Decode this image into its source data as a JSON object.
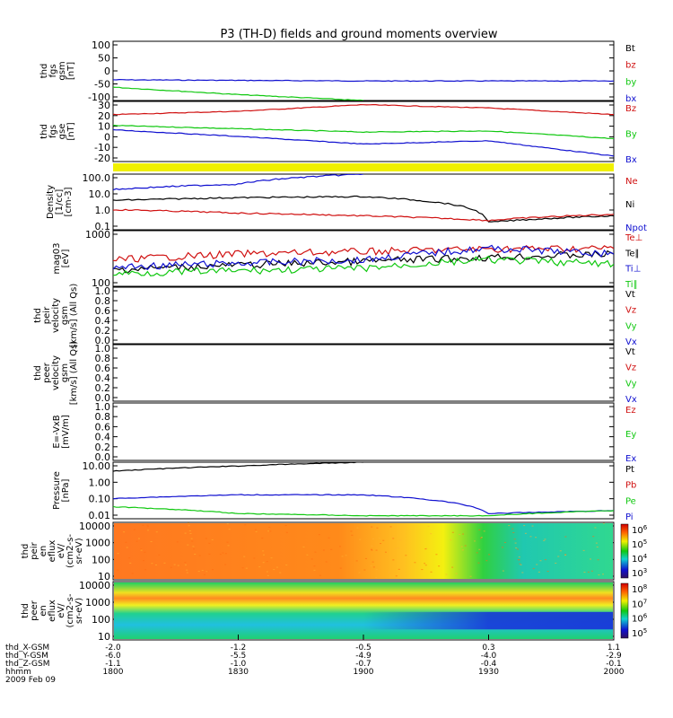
{
  "title": "P3 (TH-D) fields and ground moments overview",
  "colors": {
    "black": "#000000",
    "red": "#d01010",
    "green": "#10c810",
    "blue": "#1010d0",
    "yellow": "#f0f000"
  },
  "panels": [
    {
      "id": "fgs-gsm",
      "ylabel": [
        "thd",
        "fgs",
        "gsm",
        "[nT]"
      ],
      "ticks": [
        "100",
        "50",
        "0",
        "-50",
        "-100"
      ],
      "legend": [
        {
          "t": "Bt",
          "c": "black"
        },
        {
          "t": "bz",
          "c": "red"
        },
        {
          "t": "by",
          "c": "green"
        },
        {
          "t": "bx",
          "c": "blue"
        }
      ]
    },
    {
      "id": "fgs-gse",
      "ylabel": [
        "thd",
        "fgs",
        "gse",
        "[nT]"
      ],
      "ticks": [
        "30",
        "20",
        "10",
        "0",
        "-10",
        "-20"
      ],
      "legend": [
        {
          "t": "Bz",
          "c": "red"
        },
        {
          "t": "By",
          "c": "green"
        },
        {
          "t": "Bx",
          "c": "blue"
        }
      ]
    },
    {
      "id": "density",
      "ylabel": [
        "Density",
        "[1/cc]",
        "[cm-3]"
      ],
      "ticks": [
        "100.0",
        "10.0",
        "1.0",
        "0.1"
      ],
      "legend": [
        {
          "t": "Ne",
          "c": "red"
        },
        {
          "t": "Ni",
          "c": "black"
        },
        {
          "t": "Npot",
          "c": "blue"
        }
      ]
    },
    {
      "id": "temperature",
      "ylabel": [
        "mag03",
        "[eV]"
      ],
      "ticks": [
        "1000",
        "100"
      ],
      "legend": [
        {
          "t": "Te⊥",
          "c": "red"
        },
        {
          "t": "Te∥",
          "c": "black"
        },
        {
          "t": "Ti⊥",
          "c": "blue"
        },
        {
          "t": "Ti∥",
          "c": "green"
        }
      ]
    },
    {
      "id": "peir-velocity",
      "ylabel": [
        "thd",
        "peir",
        "velocity",
        "gsm",
        "[km/s] (All Qs)"
      ],
      "ticks": [
        "1.0",
        "0.8",
        "0.6",
        "0.4",
        "0.2",
        "0.0"
      ],
      "legend": [
        {
          "t": "Vt",
          "c": "black"
        },
        {
          "t": "Vz",
          "c": "red"
        },
        {
          "t": "Vy",
          "c": "green"
        },
        {
          "t": "Vx",
          "c": "blue"
        }
      ]
    },
    {
      "id": "peer-velocity",
      "ylabel": [
        "thd",
        "peer",
        "velocity",
        "gsm",
        "[km/s] (All Qs)"
      ],
      "ticks": [
        "1.0",
        "0.8",
        "0.6",
        "0.4",
        "0.2",
        "0.0"
      ],
      "legend": [
        {
          "t": "Vt",
          "c": "black"
        },
        {
          "t": "Vz",
          "c": "red"
        },
        {
          "t": "Vy",
          "c": "green"
        },
        {
          "t": "Vx",
          "c": "blue"
        }
      ]
    },
    {
      "id": "efield",
      "ylabel": [
        "E=-VxB",
        "[mV/m]"
      ],
      "ticks": [
        "1.0",
        "0.8",
        "0.6",
        "0.4",
        "0.2",
        "0.0"
      ],
      "legend": [
        {
          "t": "Ez",
          "c": "red"
        },
        {
          "t": "Ey",
          "c": "green"
        },
        {
          "t": "Ex",
          "c": "blue"
        }
      ]
    },
    {
      "id": "pressure",
      "ylabel": [
        "Pressure",
        "[nPa]"
      ],
      "ticks": [
        "10.00",
        "1.00",
        "0.10",
        "0.01"
      ],
      "legend": [
        {
          "t": "Pt",
          "c": "black"
        },
        {
          "t": "Pb",
          "c": "red"
        },
        {
          "t": "Pe",
          "c": "green"
        },
        {
          "t": "Pi",
          "c": "blue"
        }
      ]
    },
    {
      "id": "peir-eflux",
      "ylabel": [
        "thd",
        "peir",
        "en",
        "eflux",
        "eV/",
        "(cm2-s-",
        "sr-eV)"
      ],
      "ticks": [
        "10000",
        "1000",
        "100",
        "10"
      ],
      "colorbar": [
        "10^6",
        "10^5",
        "10^4",
        "10^3"
      ]
    },
    {
      "id": "peer-eflux",
      "ylabel": [
        "thd",
        "peer",
        "en",
        "eflux",
        "eV/",
        "(cm2-s-",
        "sr-eV)"
      ],
      "ticks": [
        "10000",
        "1000",
        "100",
        "10"
      ],
      "colorbar": [
        "10^8",
        "10^7",
        "10^6",
        "10^5"
      ]
    }
  ],
  "xaxis": {
    "labels": [
      "thd_X-GSM",
      "thd_Y-GSM",
      "thd_Z-GSM",
      "hhmm",
      "2009 Feb 09"
    ],
    "columns": [
      [
        "-2.0",
        "-6.0",
        "-1.1",
        "1800"
      ],
      [
        "-1.2",
        "-5.5",
        "-1.0",
        "1830"
      ],
      [
        "-0.5",
        "-4.9",
        "-0.7",
        "1900"
      ],
      [
        "0.3",
        "-4.0",
        "-0.4",
        "1930"
      ],
      [
        "1.1",
        "-2.9",
        "-0.1",
        "2000"
      ]
    ]
  },
  "chart_data": {
    "type": "line",
    "title": "P3 (TH-D) fields and ground moments overview",
    "x_time_hhmm": [
      "1800",
      "1830",
      "1900",
      "1930",
      "2000"
    ],
    "x_extra_rows": {
      "thd_X-GSM": [
        -2.0,
        -1.2,
        -0.5,
        0.3,
        1.1
      ],
      "thd_Y-GSM": [
        -6.0,
        -5.5,
        -4.9,
        -4.0,
        -2.9
      ],
      "thd_Z-GSM": [
        -1.1,
        -1.0,
        -0.7,
        -0.4,
        -0.1
      ]
    },
    "date": "2009 Feb 09",
    "panels": [
      {
        "name": "thd fgs gsm",
        "unit": "nT",
        "ylim": [
          -100,
          100
        ],
        "scale": "linear",
        "series": [
          {
            "name": "bx",
            "x": [
              "1800",
              "1830",
              "1900",
              "1930",
              "2000"
            ],
            "values": [
              -30,
              -32,
              -34,
              -34,
              -34
            ]
          },
          {
            "name": "by",
            "x": [
              "1800",
              "1830",
              "1900"
            ],
            "values": [
              -55,
              -80,
              -100
            ]
          }
        ]
      },
      {
        "name": "thd fgs gse",
        "unit": "nT",
        "ylim": [
          -25,
          30
        ],
        "scale": "linear",
        "series": [
          {
            "name": "Bz",
            "x": [
              "1800",
              "1830",
              "1900",
              "1930",
              "2000"
            ],
            "values": [
              18,
              21,
              27,
              24,
              18
            ]
          },
          {
            "name": "By",
            "x": [
              "1800",
              "1830",
              "1900",
              "1930",
              "2000"
            ],
            "values": [
              8,
              5,
              2,
              3,
              -4
            ]
          },
          {
            "name": "Bx",
            "x": [
              "1800",
              "1830",
              "1900",
              "1930",
              "2000"
            ],
            "values": [
              4,
              -2,
              -9,
              -6,
              -20
            ]
          }
        ]
      },
      {
        "name": "Density",
        "unit": "cm-3",
        "ylim": [
          0.05,
          200
        ],
        "scale": "log",
        "series": [
          {
            "name": "Ni",
            "x": [
              "1800",
              "1830",
              "1900",
              "1930",
              "2000"
            ],
            "values": [
              4,
              6,
              7,
              0.15,
              0.4
            ]
          },
          {
            "name": "Ne",
            "x": [
              "1800",
              "1830",
              "1900",
              "1930",
              "2000"
            ],
            "values": [
              1.0,
              0.6,
              0.4,
              0.2,
              0.5
            ]
          },
          {
            "name": "Npot",
            "x": [
              "1800",
              "1830",
              "1900"
            ],
            "values": [
              20,
              45,
              200
            ]
          }
        ]
      },
      {
        "name": "mag03",
        "unit": "eV",
        "ylim": [
          100,
          1000
        ],
        "scale": "log",
        "series": [
          {
            "name": "Te⊥",
            "x": [
              "1800",
              "1830",
              "1900",
              "1930",
              "2000"
            ],
            "values": [
              300,
              380,
              420,
              470,
              480
            ]
          },
          {
            "name": "Te∥",
            "x": [
              "1800",
              "1830",
              "1900",
              "1930",
              "2000"
            ],
            "values": [
              200,
              240,
              280,
              330,
              380
            ]
          },
          {
            "name": "Ti⊥",
            "x": [
              "1800",
              "1830",
              "1900",
              "1930",
              "2000"
            ],
            "values": [
              220,
              260,
              300,
              480,
              380
            ]
          },
          {
            "name": "Ti∥",
            "x": [
              "1800",
              "1830",
              "1900",
              "1930",
              "2000"
            ],
            "values": [
              170,
              190,
              210,
              300,
              250
            ]
          }
        ]
      },
      {
        "name": "Pressure",
        "unit": "nPa",
        "ylim": [
          0.01,
          20
        ],
        "scale": "log",
        "series": [
          {
            "name": "Pt",
            "x": [
              "1800",
              "1830",
              "1900"
            ],
            "values": [
              6,
              12,
              20
            ]
          },
          {
            "name": "Pi",
            "x": [
              "1800",
              "1830",
              "1900",
              "1930",
              "2000"
            ],
            "values": [
              0.15,
              0.25,
              0.25,
              0.02,
              0.03
            ]
          },
          {
            "name": "Pe",
            "x": [
              "1800",
              "1830",
              "1900",
              "1930",
              "2000"
            ],
            "values": [
              0.05,
              0.02,
              0.015,
              0.015,
              0.03
            ]
          }
        ]
      }
    ]
  }
}
